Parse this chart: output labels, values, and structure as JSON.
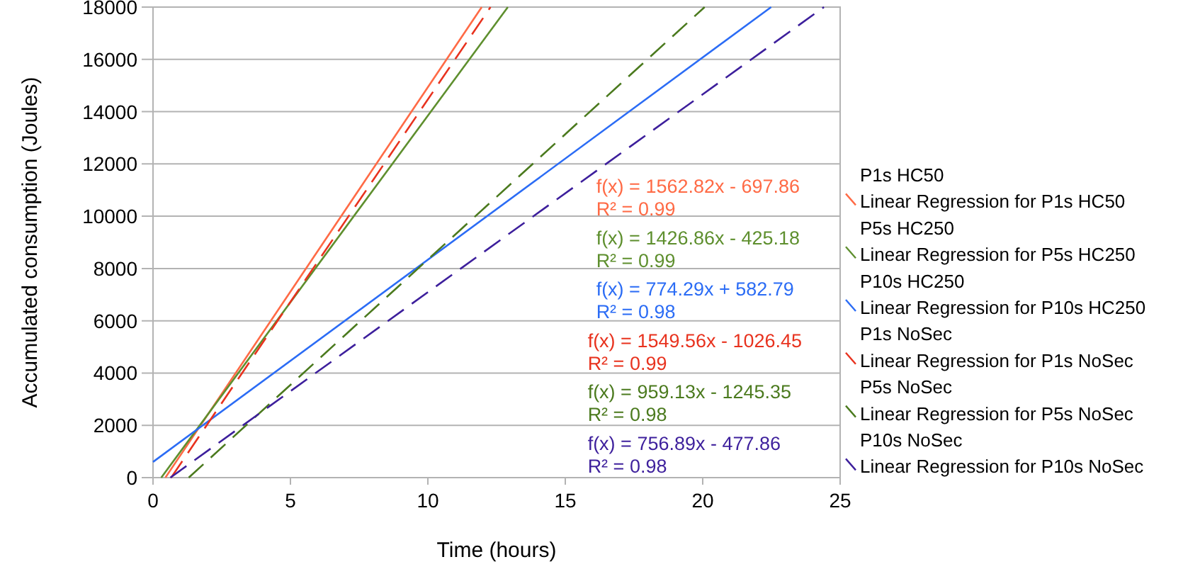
{
  "chart_data": {
    "type": "line",
    "xlabel": "Time (hours)",
    "ylabel": "Accumulated consumption (Joules)",
    "xlim": [
      0,
      25
    ],
    "ylim": [
      0,
      18000
    ],
    "xticks": [
      0,
      5,
      10,
      15,
      20,
      25
    ],
    "yticks": [
      0,
      2000,
      4000,
      6000,
      8000,
      10000,
      12000,
      14000,
      16000,
      18000
    ],
    "grid": "y",
    "legend": "right",
    "marker": "none",
    "series": [
      {
        "name": "Linear Regression for P1s HC50",
        "color": "#ff6a45",
        "line_style": "solid",
        "x": [
          0.45,
          11.96
        ],
        "values": [
          0,
          18000
        ]
      },
      {
        "name": "Linear Regression for P5s HC250",
        "color": "#5e8f2e",
        "line_style": "solid",
        "x": [
          0.3,
          12.91
        ],
        "values": [
          0,
          18000
        ]
      },
      {
        "name": "Linear Regression for P10s HC250",
        "color": "#2b6cf5",
        "line_style": "solid",
        "x": [
          0,
          22.49
        ],
        "values": [
          600,
          18000
        ]
      },
      {
        "name": "Linear Regression for P1s NoSec",
        "color": "#e8321e",
        "line_style": "dashed",
        "x": [
          0.66,
          12.28
        ],
        "values": [
          0,
          18000
        ]
      },
      {
        "name": "Linear Regression for P5s NoSec",
        "color": "#4b7a1e",
        "line_style": "dashed",
        "x": [
          1.3,
          20.07
        ],
        "values": [
          0,
          18000
        ]
      },
      {
        "name": "Linear Regression for P10s NoSec",
        "color": "#3d1f9c",
        "line_style": "dashed",
        "x": [
          0.63,
          24.41
        ],
        "values": [
          0,
          18000
        ]
      }
    ],
    "annotations": [
      "f(x) = 1562.82x - 697.86",
      "R² = 0.99",
      "f(x) = 1426.86x - 425.18",
      "R² = 0.99",
      "f(x) = 774.29x + 582.79",
      "R² = 0.98",
      "f(x) = 1549.56x - 1026.45",
      "R² = 0.99",
      "f(x) = 959.13x - 1245.35",
      "R² = 0.98",
      "f(x) = 756.89x - 477.86",
      "R² = 0.98",
      "P1s HC50",
      "P5s HC250",
      "P10s HC250",
      "P1s NoSec",
      "P5s NoSec",
      "P10s NoSec"
    ]
  }
}
